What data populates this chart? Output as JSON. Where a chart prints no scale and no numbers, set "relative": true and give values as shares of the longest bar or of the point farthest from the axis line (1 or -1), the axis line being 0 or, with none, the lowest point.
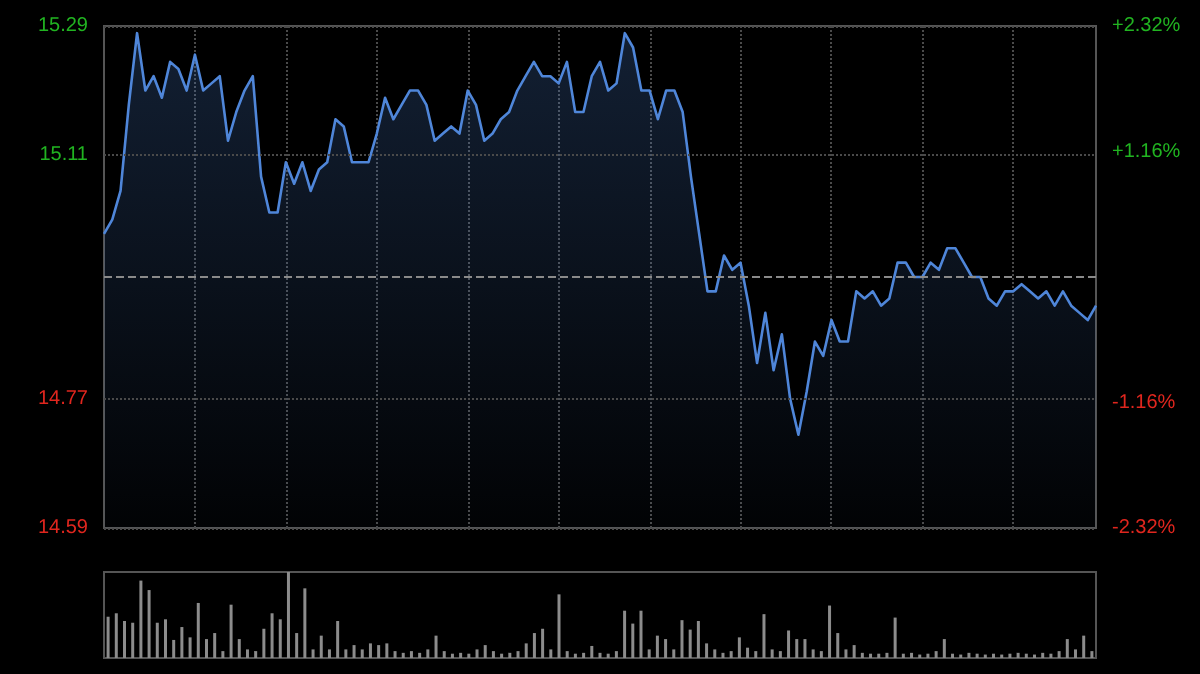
{
  "chart_data": [
    {
      "type": "area",
      "categories": [
        null,
        null,
        null,
        null,
        null,
        null,
        null,
        null,
        null,
        null,
        null,
        null,
        null,
        null,
        null,
        null,
        null,
        null,
        null,
        null,
        null,
        null,
        null,
        null,
        null,
        null,
        null,
        null,
        null,
        null,
        null,
        null,
        null,
        null,
        null,
        null,
        null,
        null,
        null,
        null,
        null,
        null,
        null,
        null,
        null,
        null,
        null,
        null,
        null,
        null,
        null,
        null,
        null,
        null,
        null,
        null,
        null,
        null,
        null,
        null,
        null,
        null,
        null,
        null,
        null,
        null,
        null,
        null,
        null,
        null,
        null,
        null,
        null,
        null,
        null,
        null,
        null,
        null,
        null,
        null,
        null,
        null,
        null,
        null,
        null,
        null,
        null,
        null,
        null,
        null,
        null,
        null,
        null,
        null,
        null,
        null,
        null,
        null,
        null,
        null,
        null,
        null,
        null,
        null,
        null,
        null,
        null,
        null,
        null,
        null,
        null,
        null,
        null,
        null,
        null,
        null,
        null,
        null,
        null,
        null,
        null
      ],
      "series": [
        {
          "color": "#4f86d9",
          "values": [
            15.0,
            15.02,
            15.06,
            15.18,
            15.28,
            15.2,
            15.22,
            15.19,
            15.24,
            15.23,
            15.2,
            15.25,
            15.2,
            15.21,
            15.22,
            15.13,
            15.17,
            15.2,
            15.22,
            15.08,
            15.03,
            15.03,
            15.1,
            15.07,
            15.1,
            15.06,
            15.09,
            15.1,
            15.16,
            15.15,
            15.1,
            15.1,
            15.1,
            15.14,
            15.19,
            15.16,
            15.18,
            15.2,
            15.2,
            15.18,
            15.13,
            15.14,
            15.15,
            15.14,
            15.2,
            15.18,
            15.13,
            15.14,
            15.16,
            15.17,
            15.2,
            15.22,
            15.24,
            15.22,
            15.22,
            15.21,
            15.24,
            15.17,
            15.17,
            15.22,
            15.24,
            15.2,
            15.21,
            15.28,
            15.26,
            15.2,
            15.2,
            15.16,
            15.2,
            15.2,
            15.17,
            15.08,
            15.0,
            14.92,
            14.92,
            14.97,
            14.95,
            14.96,
            14.9,
            14.82,
            14.89,
            14.81,
            14.86,
            14.77,
            14.72,
            14.78,
            14.85,
            14.83,
            14.88,
            14.85,
            14.85,
            14.92,
            14.91,
            14.92,
            14.9,
            14.91,
            14.96,
            14.96,
            14.94,
            14.94,
            14.96,
            14.95,
            14.98,
            14.98,
            14.96,
            14.94,
            14.94,
            14.91,
            14.9,
            14.92,
            14.92,
            14.93,
            14.92,
            14.91,
            14.92,
            14.9,
            14.92,
            14.9,
            14.89,
            14.88,
            14.9
          ]
        }
      ],
      "ylim": [
        14.59,
        15.29
      ],
      "yticks": [
        14.59,
        14.77,
        15.11,
        15.29
      ],
      "y2lim": [
        -2.32,
        2.32
      ],
      "y2ticks": [
        {
          "value": -2.32,
          "label": "-2.32%"
        },
        {
          "value": -1.16,
          "label": "-1.16%"
        },
        {
          "value": 1.16,
          "label": "+1.16%"
        },
        {
          "value": 2.32,
          "label": "+2.32%"
        }
      ],
      "ref_lines": [
        {
          "axis": "y",
          "value": 14.94,
          "color": "#8a8a8a",
          "line_style": "dashed"
        }
      ],
      "grid": true
    },
    {
      "type": "bar",
      "relative": true,
      "categories": [
        null,
        null,
        null,
        null,
        null,
        null,
        null,
        null,
        null,
        null,
        null,
        null,
        null,
        null,
        null,
        null,
        null,
        null,
        null,
        null,
        null,
        null,
        null,
        null,
        null,
        null,
        null,
        null,
        null,
        null,
        null,
        null,
        null,
        null,
        null,
        null,
        null,
        null,
        null,
        null,
        null,
        null,
        null,
        null,
        null,
        null,
        null,
        null,
        null,
        null,
        null,
        null,
        null,
        null,
        null,
        null,
        null,
        null,
        null,
        null,
        null,
        null,
        null,
        null,
        null,
        null,
        null,
        null,
        null,
        null,
        null,
        null,
        null,
        null,
        null,
        null,
        null,
        null,
        null,
        null,
        null,
        null,
        null,
        null,
        null,
        null,
        null,
        null,
        null,
        null,
        null,
        null,
        null,
        null,
        null,
        null,
        null,
        null,
        null,
        null,
        null,
        null,
        null,
        null,
        null,
        null,
        null,
        null,
        null,
        null,
        null,
        null,
        null,
        null,
        null,
        null,
        null,
        null,
        null,
        null,
        null
      ],
      "series": [
        {
          "color": "#8c8c8c",
          "values": [
            0.48,
            0.52,
            0.43,
            0.41,
            0.9,
            0.79,
            0.41,
            0.45,
            0.21,
            0.36,
            0.24,
            0.64,
            0.22,
            0.29,
            0.08,
            0.62,
            0.22,
            0.1,
            0.08,
            0.34,
            0.52,
            0.45,
            1.0,
            0.29,
            0.81,
            0.1,
            0.26,
            0.1,
            0.43,
            0.1,
            0.15,
            0.1,
            0.17,
            0.15,
            0.17,
            0.08,
            0.06,
            0.08,
            0.06,
            0.1,
            0.26,
            0.08,
            0.05,
            0.06,
            0.05,
            0.1,
            0.15,
            0.08,
            0.05,
            0.06,
            0.08,
            0.17,
            0.29,
            0.34,
            0.1,
            0.74,
            0.08,
            0.05,
            0.06,
            0.14,
            0.06,
            0.05,
            0.08,
            0.55,
            0.4,
            0.55,
            0.1,
            0.26,
            0.22,
            0.1,
            0.44,
            0.33,
            0.43,
            0.17,
            0.1,
            0.06,
            0.08,
            0.24,
            0.12,
            0.08,
            0.51,
            0.1,
            0.08,
            0.32,
            0.22,
            0.22,
            0.1,
            0.08,
            0.61,
            0.29,
            0.1,
            0.15,
            0.06,
            0.05,
            0.05,
            0.06,
            0.47,
            0.05,
            0.06,
            0.04,
            0.05,
            0.08,
            0.22,
            0.05,
            0.04,
            0.06,
            0.05,
            0.04,
            0.05,
            0.04,
            0.05,
            0.06,
            0.05,
            0.04,
            0.06,
            0.05,
            0.08,
            0.22,
            0.1,
            0.26,
            0.08
          ]
        }
      ],
      "grid": false
    }
  ]
}
